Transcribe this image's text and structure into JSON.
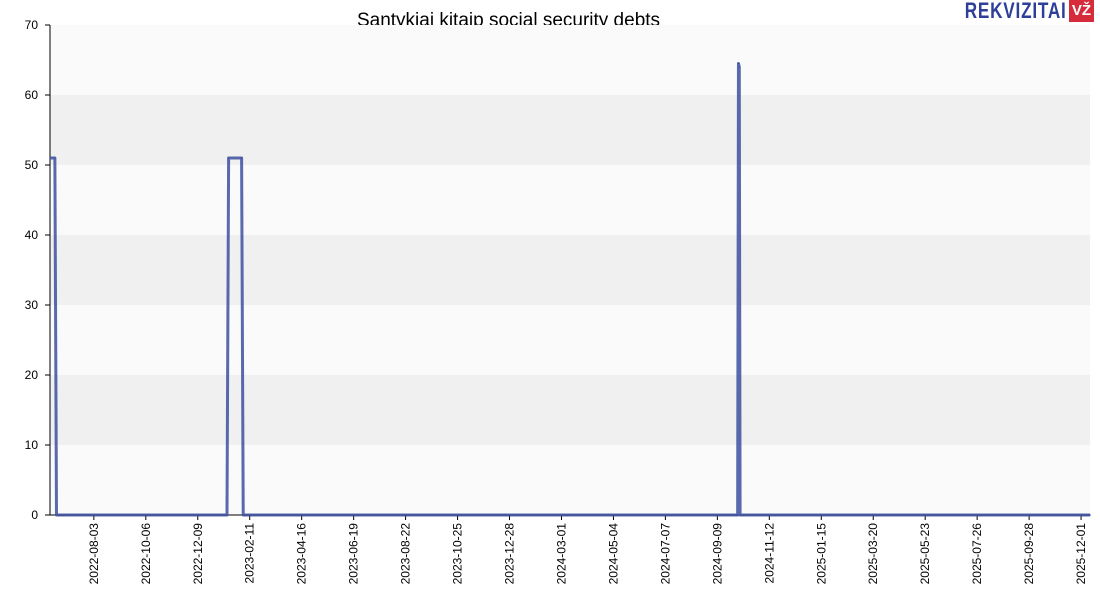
{
  "chart_data": {
    "type": "line",
    "title": "Santykiai kitaip social security debts",
    "xlabel": "",
    "ylabel": "",
    "x_range": [
      "2022-06-10",
      "2025-12-12"
    ],
    "ylim": [
      0,
      70
    ],
    "yticks": [
      0,
      10,
      20,
      30,
      40,
      50,
      60,
      70
    ],
    "xticks": [
      "2022-08-03",
      "2022-10-06",
      "2022-12-09",
      "2023-02-11",
      "2023-04-16",
      "2023-06-19",
      "2023-08-22",
      "2023-10-25",
      "2023-12-28",
      "2024-03-01",
      "2024-05-04",
      "2024-07-07",
      "2024-09-09",
      "2024-11-12",
      "2025-01-15",
      "2025-03-20",
      "2025-05-23",
      "2025-07-26",
      "2025-09-28",
      "2025-12-01"
    ],
    "grid": "horizontal bands",
    "series": [
      {
        "color": "#3d4fa0",
        "points": [
          [
            "2022-06-10",
            51
          ],
          [
            "2022-06-16",
            51
          ],
          [
            "2022-06-18",
            0
          ],
          [
            "2023-01-14",
            0
          ],
          [
            "2023-01-16",
            51
          ],
          [
            "2023-02-01",
            51
          ],
          [
            "2023-02-03",
            0
          ],
          [
            "2024-10-04",
            0
          ],
          [
            "2024-10-05",
            64.5
          ],
          [
            "2024-10-06",
            64
          ],
          [
            "2024-10-07",
            0
          ],
          [
            "2025-12-12",
            0
          ]
        ]
      }
    ]
  },
  "logo": {
    "text": "REKVIZITAI",
    "badge": "VŽ",
    "text_color": "#2d3f99",
    "badge_color": "#d52b3a"
  },
  "colors": {
    "band_dark": "#f0f0f0",
    "band_light": "#fafafa",
    "axis": "#000000",
    "line": "#3d4fa0"
  }
}
